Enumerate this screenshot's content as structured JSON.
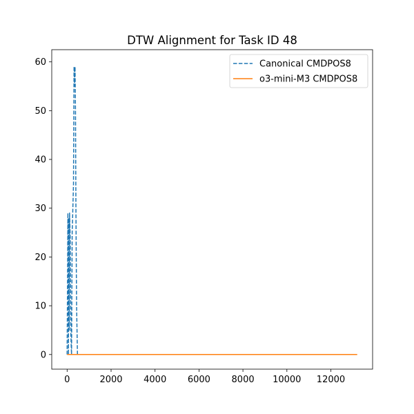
{
  "chart_data": {
    "type": "line",
    "title": "DTW Alignment for Task ID 48",
    "xlabel": "",
    "ylabel": "",
    "xlim": [
      -700,
      13900
    ],
    "ylim": [
      -3,
      62.5
    ],
    "xticks": [
      0,
      2000,
      4000,
      6000,
      8000,
      10000,
      12000
    ],
    "yticks": [
      0,
      10,
      20,
      30,
      40,
      50,
      60
    ],
    "grid": false,
    "legend_position": "top-right",
    "series": [
      {
        "name": "Canonical CMDPOS8",
        "color": "#1f77b4",
        "style": "dashed",
        "x": [
          0,
          35,
          60,
          80,
          95,
          110,
          140,
          170,
          200,
          230,
          260,
          290,
          315,
          330,
          340,
          360,
          380,
          400,
          430,
          470
        ],
        "y": [
          0,
          29,
          0,
          28,
          5,
          29,
          24,
          4,
          0,
          25,
          30,
          35,
          59,
          58,
          55,
          59,
          50,
          30,
          10,
          0
        ]
      },
      {
        "name": "o3-mini-M3 CMDPOS8",
        "color": "#ff7f0e",
        "style": "solid",
        "x": [
          0,
          13200
        ],
        "y": [
          0,
          0
        ]
      }
    ]
  }
}
